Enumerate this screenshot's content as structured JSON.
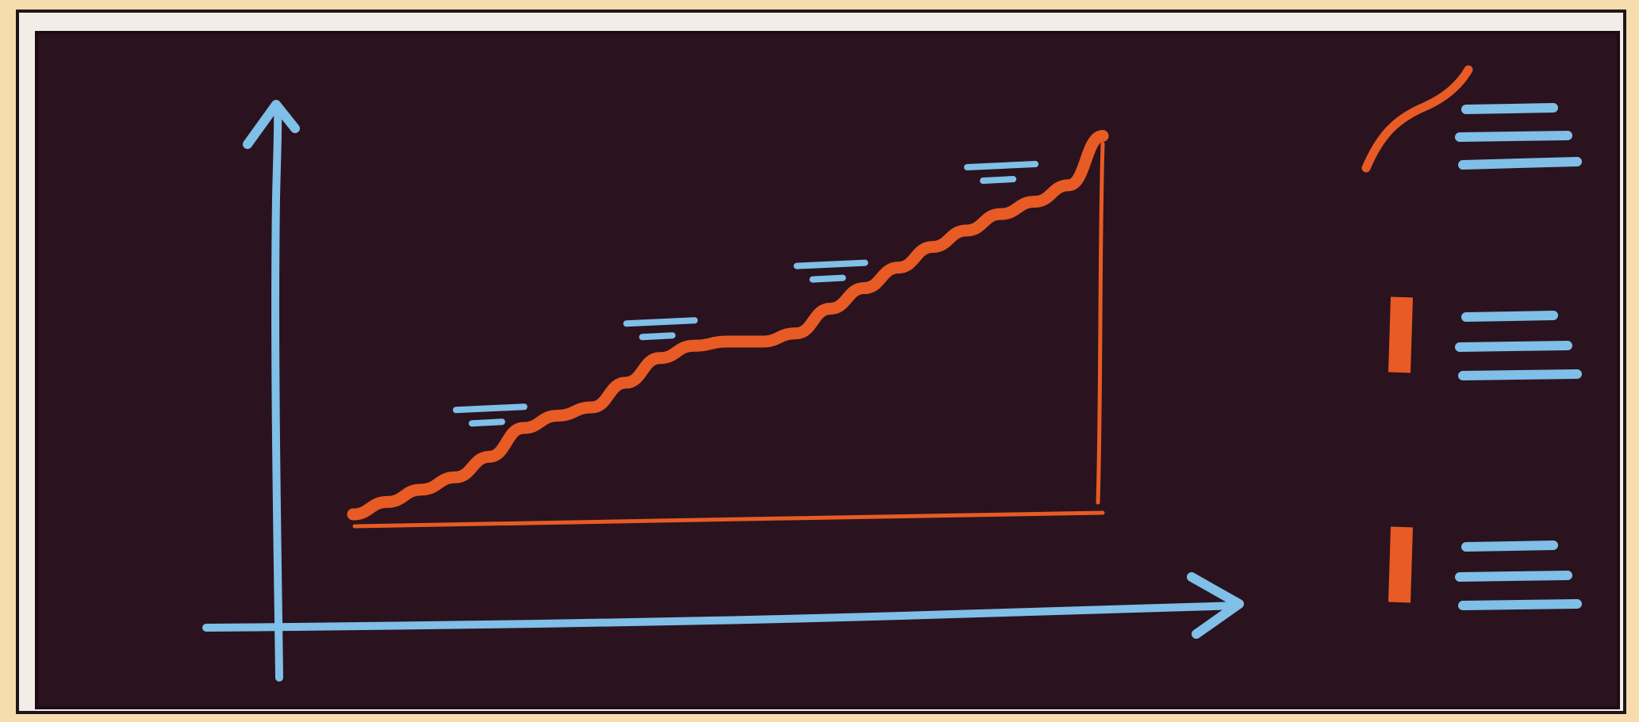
{
  "chart_data": {
    "type": "area",
    "title": "",
    "xlabel": "",
    "ylabel": "",
    "x": [
      0,
      1,
      2,
      3,
      4,
      5,
      6,
      7,
      8,
      9,
      10,
      11,
      12,
      13,
      14,
      15,
      16,
      17,
      18,
      19,
      20,
      21,
      22
    ],
    "series": [
      {
        "values": [
          0,
          3,
          6,
          9,
          14,
          21,
          24,
          26,
          32,
          38,
          41,
          42,
          42,
          44,
          50,
          55,
          60,
          65,
          69,
          73,
          76,
          80,
          92
        ]
      }
    ],
    "annotations": [
      {
        "x": 4,
        "y": 25
      },
      {
        "x": 9,
        "y": 46
      },
      {
        "x": 14,
        "y": 60
      },
      {
        "x": 19,
        "y": 84
      }
    ],
    "legend_position": "right",
    "legend_entries": [
      {
        "marker": "line"
      },
      {
        "marker": "bar"
      },
      {
        "marker": "bar"
      }
    ],
    "xlim": [
      0,
      22
    ],
    "ylim": [
      0,
      100
    ],
    "grid": false,
    "colors": {
      "background": "#2a131e",
      "frame": "#f2ede7",
      "outer": "#f7dcae",
      "axes": "#7fbfe8",
      "series": "#e85b24"
    }
  }
}
